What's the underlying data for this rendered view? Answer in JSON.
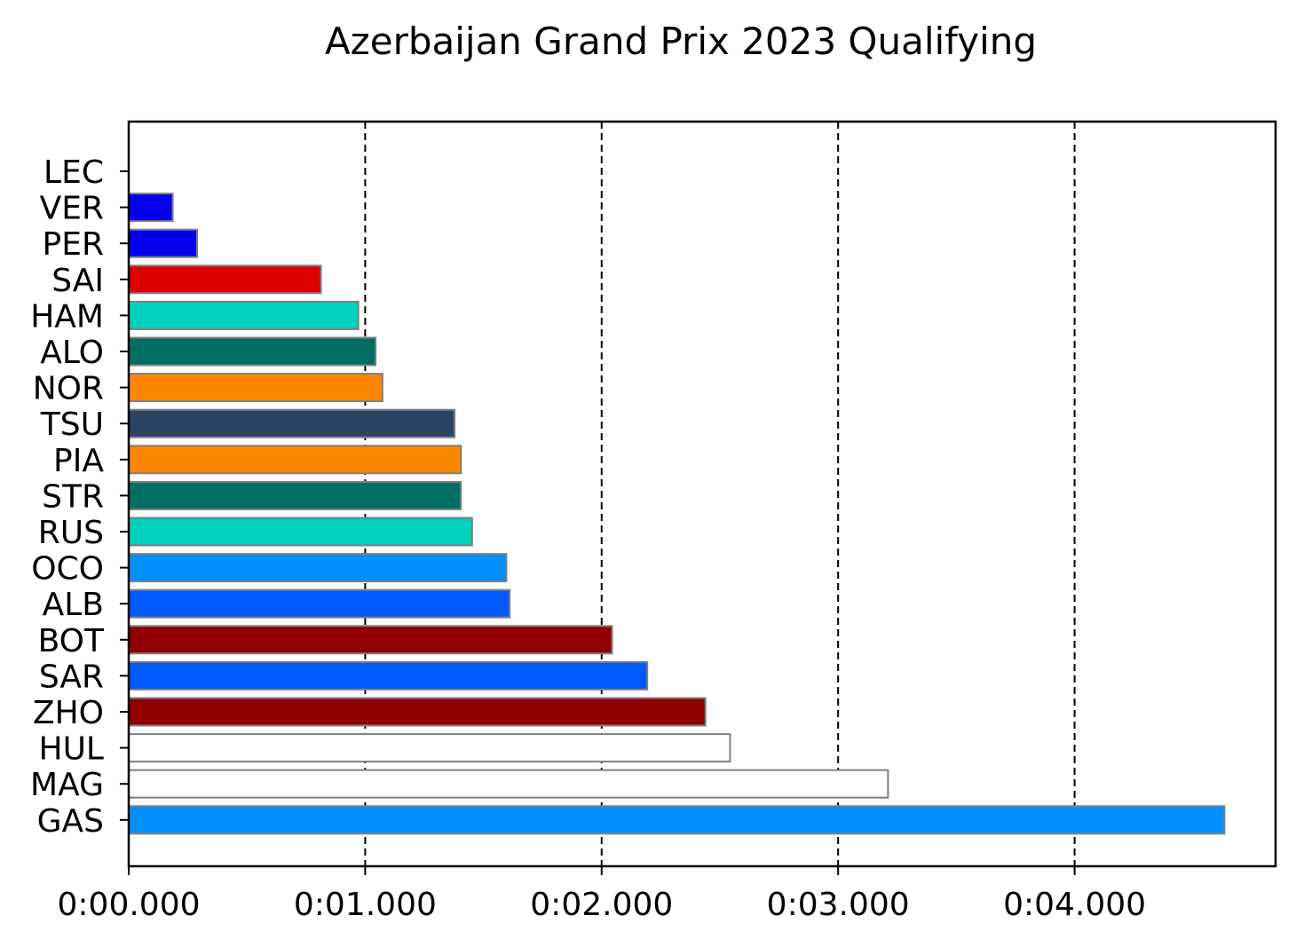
{
  "chart_data": {
    "type": "bar",
    "orientation": "horizontal",
    "title": "Azerbaijan Grand Prix 2023 Qualifying",
    "xlabel": "",
    "ylabel": "",
    "xlim": [
      0,
      4.85
    ],
    "x_ticks": [
      0,
      1,
      2,
      3,
      4
    ],
    "x_tick_labels": [
      "0:00.000",
      "0:01.000",
      "0:02.000",
      "0:03.000",
      "0:04.000"
    ],
    "grid": "vertical dashed at x ticks",
    "categories": [
      "LEC",
      "VER",
      "PER",
      "SAI",
      "HAM",
      "ALO",
      "NOR",
      "TSU",
      "PIA",
      "STR",
      "RUS",
      "OCO",
      "ALB",
      "BOT",
      "SAR",
      "ZHO",
      "HUL",
      "MAG",
      "GAS"
    ],
    "values": [
      0.0,
      0.186,
      0.289,
      0.813,
      0.971,
      1.044,
      1.073,
      1.378,
      1.405,
      1.405,
      1.452,
      1.597,
      1.611,
      2.044,
      2.193,
      2.439,
      2.543,
      3.211,
      4.634
    ],
    "colors": [
      "#dc0000",
      "#0600ef",
      "#0600ef",
      "#dc0000",
      "#00d2be",
      "#006f62",
      "#ff8700",
      "#2b4562",
      "#ff8700",
      "#006f62",
      "#00d2be",
      "#0090ff",
      "#005aff",
      "#900000",
      "#005aff",
      "#900000",
      "#ffffff",
      "#ffffff",
      "#0090ff"
    ]
  }
}
